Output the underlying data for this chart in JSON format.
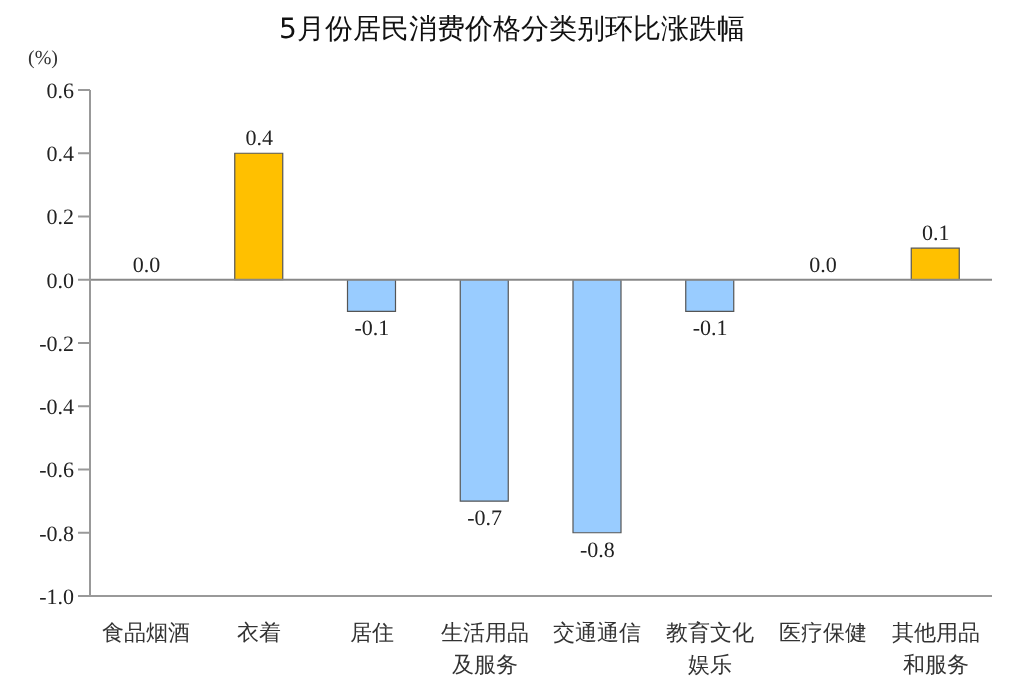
{
  "chart_data": {
    "type": "bar",
    "title": "5月份居民消费价格分类别环比涨跌幅",
    "ylabel": "(%)",
    "categories": [
      "食品烟酒",
      "衣着",
      "居住",
      "生活用品及服务",
      "交通通信",
      "教育文化娱乐",
      "医疗保健",
      "其他用品和服务"
    ],
    "values": [
      0.0,
      0.4,
      -0.1,
      -0.7,
      -0.8,
      -0.1,
      0.0,
      0.1
    ],
    "colors": [
      "#ffc000",
      "#ffc000",
      "#99ccff",
      "#99ccff",
      "#99ccff",
      "#99ccff",
      "#ffc000",
      "#ffc000"
    ],
    "ylim": [
      -1.0,
      0.6
    ],
    "yticks": [
      0.6,
      0.4,
      0.2,
      {
        "value": 0,
        "label": "0.0"
      },
      -0.2,
      -0.4,
      -0.6,
      -0.8,
      {
        "value": -1,
        "label": "-1.0"
      }
    ],
    "value_labels": [
      "0.0",
      "0.4",
      "-0.1",
      "-0.7",
      "-0.8",
      "-0.1",
      "0.0",
      "0.1"
    ]
  }
}
